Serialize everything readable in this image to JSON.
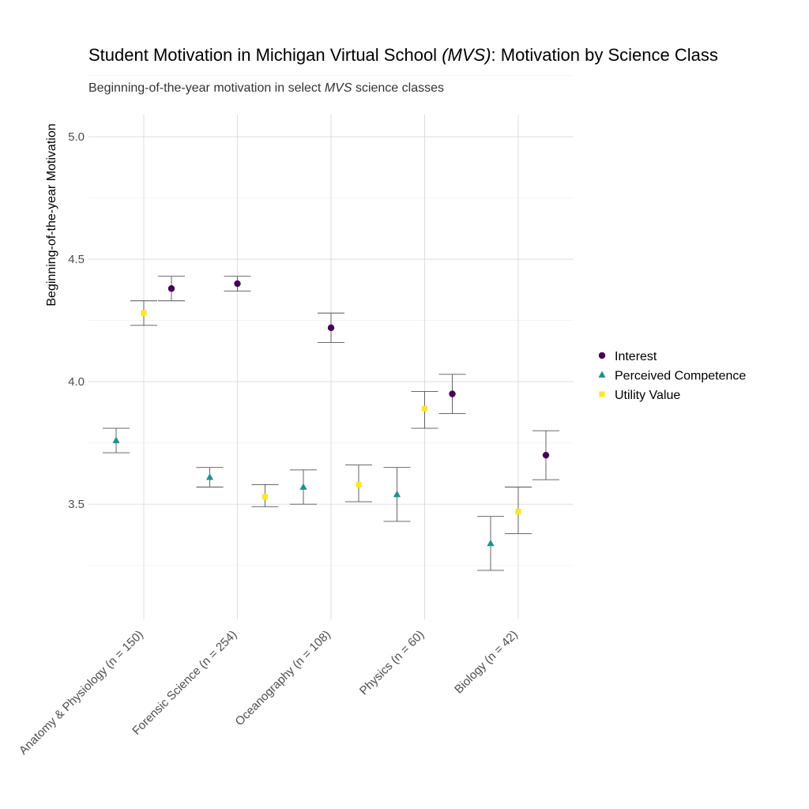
{
  "chart_data": {
    "type": "scatter",
    "title": {
      "prefix": "Student Motivation in Michigan Virtual School ",
      "italic": "(MVS)",
      "suffix": ": Motivation by Science Class"
    },
    "subtitle": {
      "prefix": "Beginning-of-the-year motivation in select ",
      "italic": "MVS",
      "suffix": " science classes"
    },
    "xlabel": "",
    "ylabel": "Beginning-of-the-year Motivation",
    "ylim": [
      3.03,
      5.09
    ],
    "yticks": [
      3.5,
      4.0,
      4.5,
      5.0
    ],
    "ytick_labels": [
      "3.5",
      "4.0",
      "4.5",
      "5.0"
    ],
    "categories": [
      "Anatomy & Physiology (n = 150)",
      "Forensic Science (n = 254)",
      "Oceanography (n = 108)",
      "Physics (n = 60)",
      "Biology (n = 42)"
    ],
    "legend_position": "right",
    "series": [
      {
        "name": "Interest",
        "color": "#440154",
        "shape": "circle",
        "values": [
          4.38,
          4.4,
          4.22,
          3.95,
          3.7
        ],
        "lower": [
          4.33,
          4.37,
          4.16,
          3.87,
          3.6
        ],
        "upper": [
          4.43,
          4.43,
          4.28,
          4.03,
          3.8
        ]
      },
      {
        "name": "Perceived Competence",
        "color": "#21908C",
        "shape": "triangle",
        "values": [
          3.76,
          3.61,
          3.57,
          3.54,
          3.34
        ],
        "lower": [
          3.71,
          3.57,
          3.5,
          3.43,
          3.23
        ],
        "upper": [
          3.81,
          3.65,
          3.64,
          3.65,
          3.45
        ]
      },
      {
        "name": "Utility Value",
        "color": "#FDE725",
        "shape": "square",
        "values": [
          4.28,
          3.53,
          3.58,
          3.89,
          3.47
        ],
        "lower": [
          4.23,
          3.49,
          3.51,
          3.81,
          3.38
        ],
        "upper": [
          4.33,
          3.58,
          3.66,
          3.96,
          3.57
        ]
      }
    ]
  }
}
